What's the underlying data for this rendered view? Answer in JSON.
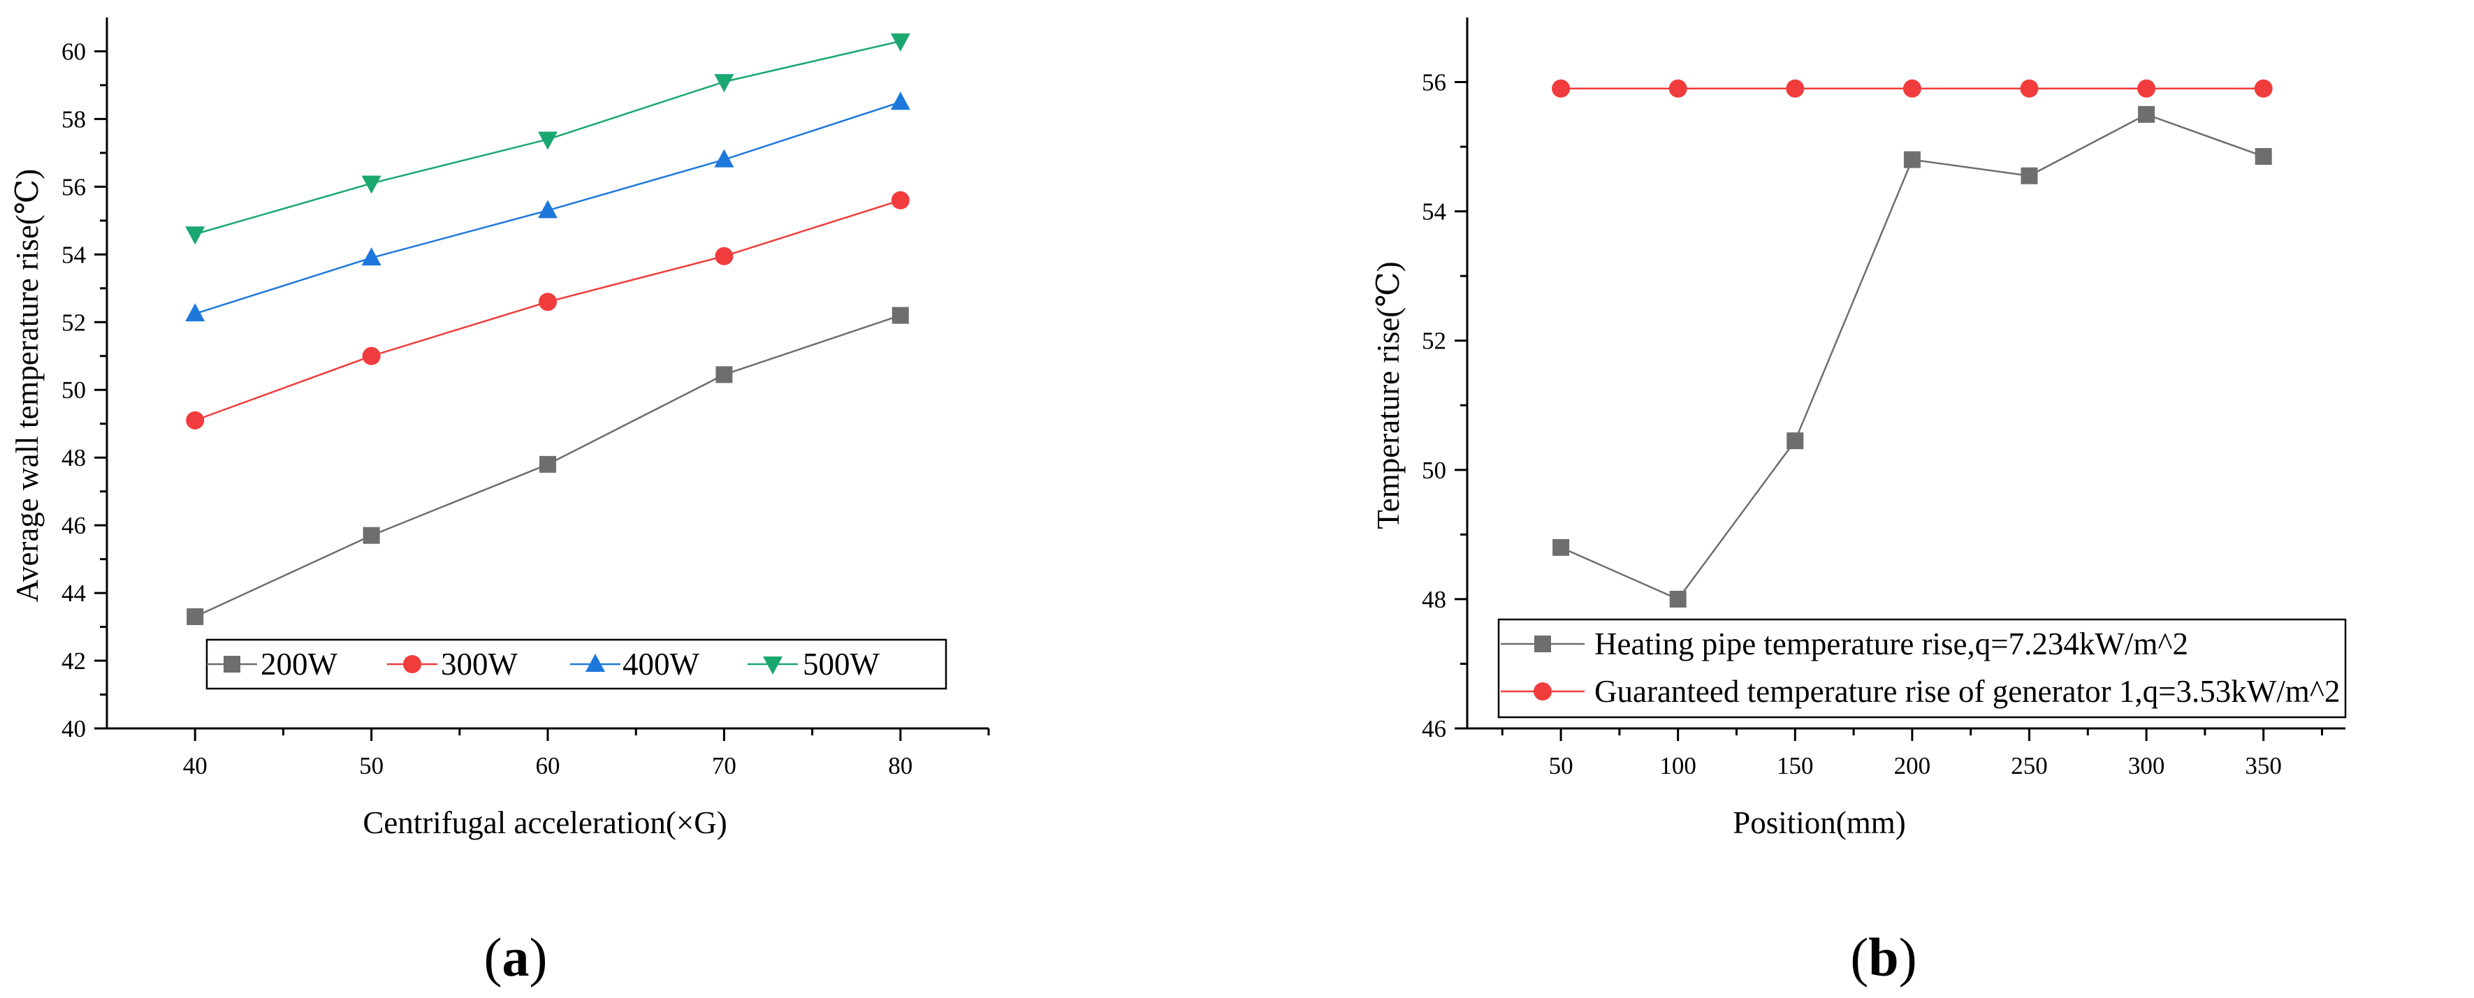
{
  "chart_data": [
    {
      "type": "line",
      "panel_label": "(a)",
      "panel_label_parts": [
        "(",
        "a",
        ")"
      ],
      "xlabel": "Centrifugal acceleration(×G)",
      "ylabel": "Average wall temperature rise(℃)",
      "x": [
        40,
        50,
        60,
        70,
        80
      ],
      "xlim": [
        35,
        85
      ],
      "ylim": [
        40,
        61
      ],
      "xticks": [
        40,
        50,
        60,
        70,
        80
      ],
      "yticks": [
        40,
        42,
        44,
        46,
        48,
        50,
        52,
        54,
        56,
        58,
        60
      ],
      "legend_position": "bottom-right",
      "series": [
        {
          "name": "200W",
          "marker": "square",
          "color": "#6e6e6e",
          "values": [
            43.3,
            45.7,
            47.8,
            50.45,
            52.2
          ]
        },
        {
          "name": "300W",
          "marker": "circle",
          "color": "#f03c3c",
          "values": [
            49.1,
            51.0,
            52.6,
            53.95,
            55.6
          ]
        },
        {
          "name": "400W",
          "marker": "triangle-up",
          "color": "#1e78dc",
          "values": [
            52.25,
            53.9,
            55.3,
            56.8,
            58.5
          ]
        },
        {
          "name": "500W",
          "marker": "triangle-down",
          "color": "#1aa870",
          "values": [
            54.6,
            56.1,
            57.4,
            59.1,
            60.3
          ]
        }
      ]
    },
    {
      "type": "line",
      "panel_label": "(b)",
      "panel_label_parts": [
        "(",
        "b",
        ")"
      ],
      "xlabel": "Position(mm)",
      "ylabel": "Temperature rise(℃)",
      "x": [
        50,
        100,
        150,
        200,
        250,
        300,
        350
      ],
      "xlim": [
        10,
        385
      ],
      "ylim": [
        46,
        57
      ],
      "xticks": [
        50,
        100,
        150,
        200,
        250,
        300,
        350
      ],
      "yticks": [
        46,
        48,
        50,
        52,
        54,
        56
      ],
      "legend_position": "bottom-right",
      "series": [
        {
          "name": "Heating pipe temperature rise,q=7.234kW/m^2",
          "marker": "square",
          "color": "#6e6e6e",
          "values": [
            48.8,
            48.0,
            50.45,
            54.8,
            54.55,
            55.5,
            54.85
          ]
        },
        {
          "name": "Guaranteed temperature rise of generator 1,q=3.53kW/m^2",
          "marker": "circle",
          "color": "#f03c3c",
          "values": [
            55.9,
            55.9,
            55.9,
            55.9,
            55.9,
            55.9,
            55.9
          ]
        }
      ]
    }
  ]
}
